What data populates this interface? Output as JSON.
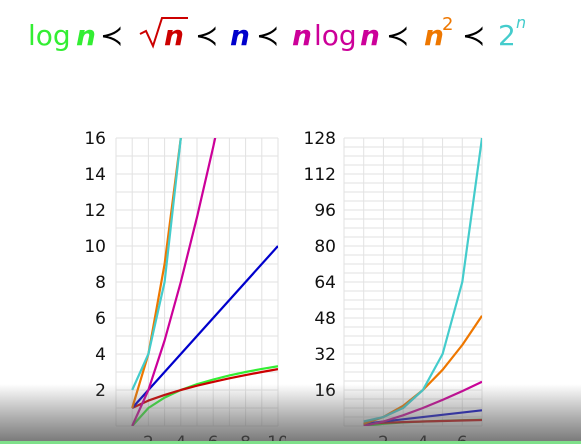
{
  "formula": {
    "log": "log",
    "n": "n",
    "two": "2",
    "exp": "n",
    "sq": "2",
    "prec": "≺",
    "colors": {
      "log": "#33ee33",
      "sqrt": "#cc0000",
      "linear": "#0000cc",
      "nlogn": "#cc0099",
      "square": "#ee7700",
      "exp": "#44cccc"
    }
  },
  "chart_data": [
    {
      "type": "line",
      "xlim": [
        0,
        10
      ],
      "ylim": [
        0,
        16
      ],
      "xticks": [
        2,
        4,
        6,
        8,
        10
      ],
      "yticks": [
        2,
        4,
        6,
        8,
        10,
        12,
        14,
        16
      ],
      "grid": true,
      "series": [
        {
          "color": "#33ee33",
          "x": [
            1,
            2,
            3,
            4,
            5,
            6,
            7,
            8,
            9,
            10
          ],
          "y": [
            0.0,
            1.0,
            1.58,
            2.0,
            2.32,
            2.58,
            2.81,
            3.0,
            3.17,
            3.32
          ]
        },
        {
          "color": "#cc0000",
          "x": [
            1,
            2,
            3,
            4,
            5,
            6,
            7,
            8,
            9,
            10
          ],
          "y": [
            1.0,
            1.41,
            1.73,
            2.0,
            2.24,
            2.45,
            2.65,
            2.83,
            3.0,
            3.16
          ]
        },
        {
          "color": "#0000cc",
          "x": [
            1,
            10
          ],
          "y": [
            1,
            10
          ]
        },
        {
          "color": "#cc0099",
          "x": [
            1,
            2,
            3,
            4,
            5,
            6,
            7
          ],
          "y": [
            0.0,
            2.0,
            4.75,
            8.0,
            11.6,
            15.5,
            19.65
          ]
        },
        {
          "color": "#ee7700",
          "x": [
            1,
            2,
            3,
            4,
            4.2
          ],
          "y": [
            1,
            4,
            9,
            16,
            17.64
          ]
        },
        {
          "color": "#44cccc",
          "x": [
            1,
            2,
            3,
            4,
            4.1
          ],
          "y": [
            2,
            4,
            8,
            16,
            17.15
          ]
        }
      ]
    },
    {
      "type": "line",
      "xlim": [
        0,
        7
      ],
      "ylim": [
        0,
        128
      ],
      "xticks": [
        2,
        4,
        6
      ],
      "yticks": [
        16,
        32,
        48,
        64,
        80,
        96,
        112,
        128
      ],
      "grid": true,
      "series": [
        {
          "color": "#33ee33",
          "x": [
            1,
            2,
            3,
            4,
            5,
            6,
            7
          ],
          "y": [
            0.0,
            1.0,
            1.58,
            2.0,
            2.32,
            2.58,
            2.81
          ]
        },
        {
          "color": "#cc0000",
          "x": [
            1,
            2,
            3,
            4,
            5,
            6,
            7
          ],
          "y": [
            1.0,
            1.41,
            1.73,
            2.0,
            2.24,
            2.45,
            2.65
          ]
        },
        {
          "color": "#0000cc",
          "x": [
            1,
            7
          ],
          "y": [
            1,
            7
          ]
        },
        {
          "color": "#cc0099",
          "x": [
            1,
            2,
            3,
            4,
            5,
            6,
            7
          ],
          "y": [
            0.0,
            2.0,
            4.75,
            8.0,
            11.6,
            15.5,
            19.65
          ]
        },
        {
          "color": "#ee7700",
          "x": [
            1,
            2,
            3,
            4,
            5,
            6,
            7
          ],
          "y": [
            1,
            4,
            9,
            16,
            25,
            36,
            49
          ]
        },
        {
          "color": "#44cccc",
          "x": [
            1,
            2,
            3,
            4,
            5,
            6,
            7
          ],
          "y": [
            2,
            4,
            8,
            16,
            32,
            64,
            128
          ]
        }
      ]
    }
  ]
}
